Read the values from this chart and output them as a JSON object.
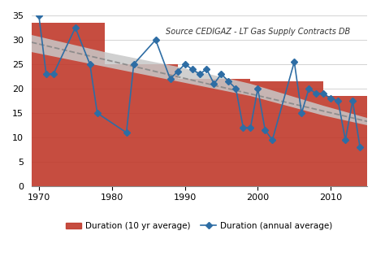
{
  "source_text": "Source CEDIGAZ - LT Gas Supply Contracts DB",
  "xlim": [
    1969,
    2015
  ],
  "ylim": [
    0,
    35
  ],
  "yticks": [
    0,
    5,
    10,
    15,
    20,
    25,
    30,
    35
  ],
  "xticks": [
    1970,
    1980,
    1990,
    2000,
    2010
  ],
  "bar_color": "#c0392b",
  "bar_alpha": 0.9,
  "band_color": "#c8c8c8",
  "band_alpha": 0.85,
  "line_color": "#2e6da4",
  "trend_color": "#888888",
  "bar_data_x": [
    1969,
    1979,
    1989,
    1999,
    2009
  ],
  "bar_data_h": [
    33.5,
    25.0,
    22.0,
    21.5,
    18.5
  ],
  "bar_data_w": [
    10,
    10,
    10,
    10,
    6
  ],
  "band_x": [
    1969,
    1979,
    1989,
    1999,
    2009,
    2015,
    2015,
    2009,
    1999,
    1989,
    1979,
    1969
  ],
  "band_y": [
    31.0,
    27.5,
    24.5,
    21.0,
    16.5,
    14.0,
    12.5,
    14.5,
    18.5,
    21.5,
    24.5,
    27.5
  ],
  "trend_x": [
    1969,
    2015
  ],
  "trend_y": [
    29.5,
    13.3
  ],
  "annual_years": [
    1970,
    1971,
    1972,
    1975,
    1977,
    1978,
    1982,
    1983,
    1986,
    1988,
    1989,
    1990,
    1991,
    1992,
    1993,
    1994,
    1995,
    1996,
    1997,
    1998,
    1999,
    2000,
    2001,
    2002,
    2005,
    2006,
    2007,
    2008,
    2009,
    2010,
    2011,
    2012,
    2013,
    2014
  ],
  "annual_values": [
    35,
    23,
    23,
    32.5,
    25,
    15,
    11,
    25,
    30,
    22,
    23.5,
    25,
    24,
    23,
    24,
    21,
    23,
    21.5,
    20,
    12,
    12,
    20,
    11.5,
    9.5,
    25.5,
    15,
    20,
    19,
    19,
    18,
    17.5,
    9.5,
    17.5,
    8
  ],
  "legend_bar_label": "Duration (10 yr average)",
  "legend_line_label": "Duration (annual average)",
  "background_color": "#ffffff"
}
